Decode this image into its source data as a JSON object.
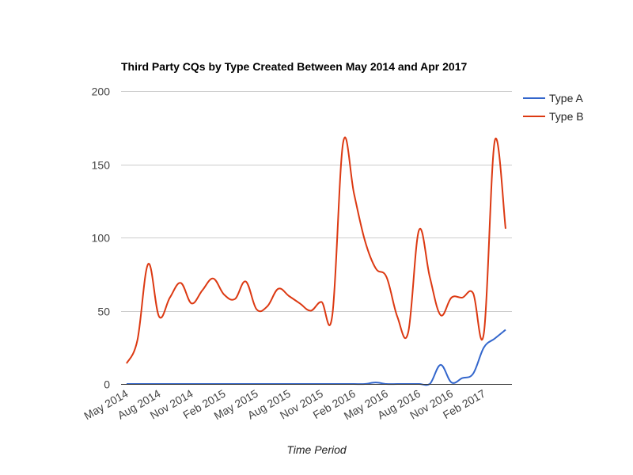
{
  "chart_data": {
    "type": "line",
    "title": "Third Party CQs by Type Created Between May 2014 and Apr 2017",
    "xlabel": "Time Period",
    "ylabel": "",
    "ylim": [
      0,
      200
    ],
    "yticks": [
      0,
      50,
      100,
      150,
      200
    ],
    "grid": true,
    "legend_position": "right",
    "x": [
      "May 2014",
      "Jun 2014",
      "Jul 2014",
      "Aug 2014",
      "Sep 2014",
      "Oct 2014",
      "Nov 2014",
      "Dec 2014",
      "Jan 2015",
      "Feb 2015",
      "Mar 2015",
      "Apr 2015",
      "May 2015",
      "Jun 2015",
      "Jul 2015",
      "Aug 2015",
      "Sep 2015",
      "Oct 2015",
      "Nov 2015",
      "Dec 2015",
      "Jan 2016",
      "Feb 2016",
      "Mar 2016",
      "Apr 2016",
      "May 2016",
      "Jun 2016",
      "Jul 2016",
      "Aug 2016",
      "Sep 2016",
      "Oct 2016",
      "Nov 2016",
      "Dec 2016",
      "Jan 2017",
      "Feb 2017",
      "Mar 2017",
      "Apr 2017"
    ],
    "xtick_labels": [
      "May 2014",
      "Aug 2014",
      "Nov 2014",
      "Feb 2015",
      "May 2015",
      "Aug 2015",
      "Nov 2015",
      "Feb 2016",
      "May 2016",
      "Aug 2016",
      "Nov 2016",
      "Feb 2017"
    ],
    "series": [
      {
        "name": "Type A",
        "color": "#3366cc",
        "values": [
          0,
          0,
          0,
          0,
          0,
          0,
          0,
          0,
          0,
          0,
          0,
          0,
          0,
          0,
          0,
          0,
          0,
          0,
          0,
          0,
          0,
          0,
          0,
          1,
          0,
          0,
          0,
          0,
          0,
          13,
          1,
          4,
          7,
          25,
          31,
          37
        ]
      },
      {
        "name": "Type B",
        "color": "#dc3912",
        "values": [
          14,
          30,
          82,
          46,
          59,
          69,
          55,
          64,
          72,
          61,
          58,
          70,
          51,
          53,
          65,
          60,
          55,
          50,
          56,
          47,
          165,
          130,
          98,
          79,
          73,
          46,
          35,
          105,
          73,
          47,
          59,
          59,
          62,
          35,
          166,
          106
        ]
      }
    ]
  }
}
